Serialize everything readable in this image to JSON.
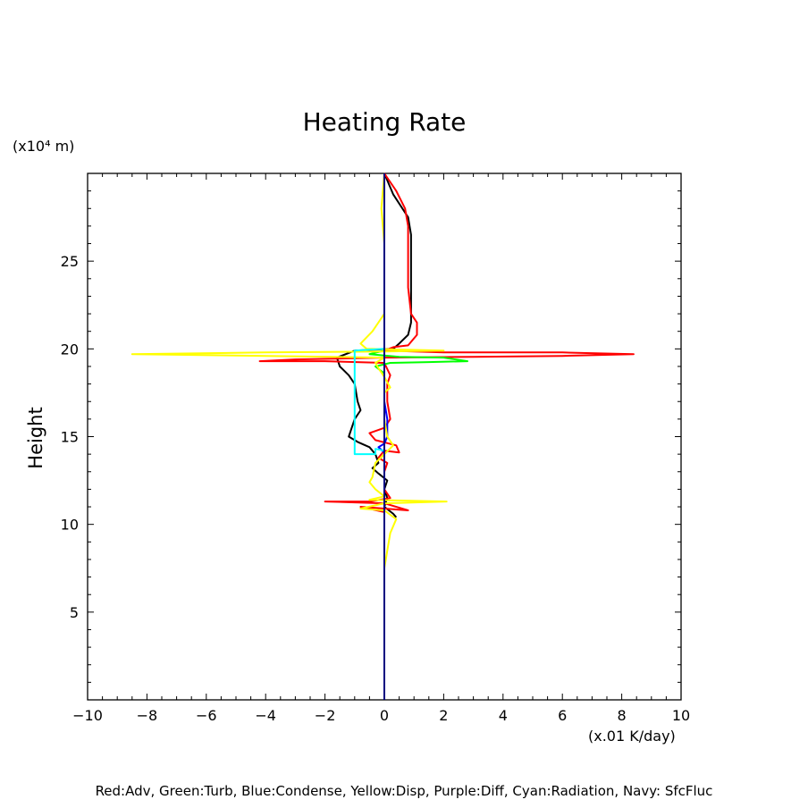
{
  "chart_data": {
    "type": "line",
    "title": "Heating Rate",
    "xlabel": "(x.01 K/day)",
    "ylabel": "Height",
    "y_unit_label": "(x10⁴ m)",
    "xlim": [
      -10,
      10
    ],
    "ylim": [
      0,
      30
    ],
    "x_ticks": [
      -10,
      -8,
      -6,
      -4,
      -2,
      0,
      2,
      4,
      6,
      8,
      10
    ],
    "x_tick_labels": [
      "−10",
      "−8",
      "−6",
      "−4",
      "−2",
      "0",
      "2",
      "4",
      "6",
      "8",
      "10"
    ],
    "y_ticks": [
      5,
      10,
      15,
      20,
      25
    ],
    "y_tick_labels": [
      "5",
      "10",
      "15",
      "20",
      "25"
    ],
    "grid": false,
    "caption": "Red:Adv, Green:Turb, Blue:Condense, Yellow:Disp, Purple:Diff, Cyan:Radiation, Navy: SfcFluc",
    "series": [
      {
        "color": "#000000",
        "points": [
          [
            0.0,
            30.0
          ],
          [
            0.3,
            28.8
          ],
          [
            0.8,
            27.5
          ],
          [
            0.9,
            26.5
          ],
          [
            0.9,
            24.0
          ],
          [
            0.9,
            21.5
          ],
          [
            0.8,
            20.8
          ],
          [
            0.5,
            20.3
          ],
          [
            0.3,
            20.0
          ],
          [
            -1.0,
            19.9
          ],
          [
            -1.6,
            19.5
          ],
          [
            -1.5,
            19.0
          ],
          [
            -1.2,
            18.5
          ],
          [
            -1.0,
            18.0
          ],
          [
            -0.9,
            17.0
          ],
          [
            -0.8,
            16.5
          ],
          [
            -1.0,
            16.0
          ],
          [
            -1.1,
            15.5
          ],
          [
            -1.2,
            15.0
          ],
          [
            -0.9,
            14.7
          ],
          [
            -0.5,
            14.4
          ],
          [
            -0.3,
            14.0
          ],
          [
            -0.2,
            13.5
          ],
          [
            -0.4,
            13.2
          ],
          [
            -0.2,
            12.9
          ],
          [
            0.1,
            12.5
          ],
          [
            0.0,
            12.0
          ],
          [
            0.1,
            11.5
          ],
          [
            0.0,
            11.0
          ],
          [
            0.3,
            10.6
          ],
          [
            0.4,
            10.4
          ]
        ]
      },
      {
        "color": "#ff0000",
        "points": [
          [
            0.0,
            30.0
          ],
          [
            0.4,
            29.0
          ],
          [
            0.7,
            28.0
          ],
          [
            0.8,
            27.0
          ],
          [
            0.8,
            25.0
          ],
          [
            0.8,
            23.5
          ],
          [
            0.9,
            22.0
          ],
          [
            1.1,
            21.5
          ],
          [
            1.1,
            20.8
          ],
          [
            0.8,
            20.2
          ],
          [
            0.3,
            20.1
          ],
          [
            0.0,
            19.9
          ],
          [
            2.0,
            19.8
          ],
          [
            6.0,
            19.8
          ],
          [
            8.4,
            19.7
          ],
          [
            6.0,
            19.6
          ],
          [
            3.0,
            19.55
          ],
          [
            0.0,
            19.5
          ],
          [
            -3.0,
            19.4
          ],
          [
            -4.2,
            19.3
          ],
          [
            -2.0,
            19.3
          ],
          [
            0.0,
            19.2
          ],
          [
            0.2,
            18.5
          ],
          [
            0.1,
            18.0
          ],
          [
            0.1,
            17.0
          ],
          [
            0.2,
            16.0
          ],
          [
            0.0,
            15.5
          ],
          [
            -0.5,
            15.2
          ],
          [
            -0.3,
            14.8
          ],
          [
            0.4,
            14.5
          ],
          [
            0.5,
            14.1
          ],
          [
            0.0,
            14.2
          ],
          [
            -0.2,
            13.8
          ],
          [
            0.1,
            13.5
          ],
          [
            0.0,
            13.0
          ],
          [
            0.0,
            12.0
          ],
          [
            0.2,
            11.5
          ],
          [
            -0.5,
            11.3
          ],
          [
            -2.0,
            11.3
          ],
          [
            0.0,
            11.2
          ],
          [
            0.8,
            10.8
          ],
          [
            0.0,
            10.9
          ],
          [
            -0.8,
            11.0
          ],
          [
            0.0,
            10.7
          ],
          [
            0.0,
            10.2
          ]
        ]
      },
      {
        "color": "#00ff00",
        "points": [
          [
            0.0,
            19.9
          ],
          [
            -0.5,
            19.7
          ],
          [
            0.5,
            19.55
          ],
          [
            2.0,
            19.5
          ],
          [
            2.8,
            19.3
          ],
          [
            1.5,
            19.25
          ],
          [
            0.2,
            19.2
          ],
          [
            -0.3,
            19.0
          ],
          [
            0.0,
            18.6
          ]
        ]
      },
      {
        "color": "#0000ff",
        "points": [
          [
            0.0,
            18.5
          ],
          [
            0.0,
            17.0
          ],
          [
            0.1,
            16.0
          ],
          [
            0.1,
            15.5
          ],
          [
            0.1,
            15.0
          ],
          [
            0.0,
            14.6
          ],
          [
            -0.2,
            14.4
          ],
          [
            0.0,
            14.1
          ],
          [
            0.0,
            13.5
          ]
        ]
      },
      {
        "color": "#ffff00",
        "points": [
          [
            0.0,
            30.0
          ],
          [
            -0.1,
            28.0
          ],
          [
            0.0,
            26.0
          ],
          [
            0.0,
            24.0
          ],
          [
            0.0,
            22.0
          ],
          [
            -0.4,
            21.0
          ],
          [
            -0.8,
            20.3
          ],
          [
            -0.6,
            20.0
          ],
          [
            2.0,
            19.9
          ],
          [
            0.0,
            19.85
          ],
          [
            -4.0,
            19.8
          ],
          [
            -8.5,
            19.7
          ],
          [
            -4.0,
            19.6
          ],
          [
            0.0,
            19.5
          ],
          [
            -0.3,
            19.2
          ],
          [
            -0.2,
            18.9
          ],
          [
            0.0,
            18.4
          ],
          [
            0.2,
            17.8
          ],
          [
            0.0,
            17.5
          ],
          [
            0.0,
            16.5
          ],
          [
            0.0,
            16.0
          ],
          [
            0.1,
            15.0
          ],
          [
            0.3,
            14.5
          ],
          [
            0.0,
            14.0
          ],
          [
            -0.3,
            13.5
          ],
          [
            -0.4,
            12.7
          ],
          [
            -0.5,
            12.4
          ],
          [
            -0.3,
            12.0
          ],
          [
            0.0,
            11.6
          ],
          [
            -0.5,
            11.4
          ],
          [
            2.1,
            11.3
          ],
          [
            0.0,
            11.2
          ],
          [
            -0.8,
            10.9
          ],
          [
            0.0,
            10.8
          ],
          [
            0.4,
            10.3
          ],
          [
            0.2,
            9.5
          ],
          [
            0.1,
            8.5
          ],
          [
            0.0,
            7.5
          ],
          [
            0.0,
            6.5
          ]
        ]
      },
      {
        "color": "#00ffff",
        "points": [
          [
            0.0,
            20.0
          ],
          [
            -1.0,
            19.9
          ],
          [
            -1.0,
            19.0
          ],
          [
            -1.0,
            17.0
          ],
          [
            -1.0,
            15.0
          ],
          [
            -1.0,
            14.0
          ],
          [
            -0.3,
            14.0
          ],
          [
            -0.3,
            14.3
          ],
          [
            0.0,
            14.2
          ]
        ]
      },
      {
        "color": "#000080",
        "points": [
          [
            0.0,
            30.0
          ],
          [
            0.0,
            0.0
          ]
        ]
      }
    ]
  }
}
